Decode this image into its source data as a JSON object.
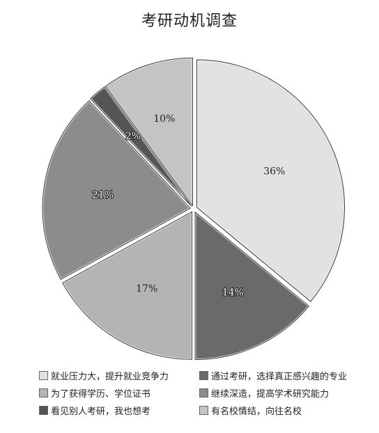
{
  "chart_data": {
    "type": "pie",
    "title": "考研动机调查",
    "slices": [
      {
        "label": "就业压力大，提升就业竞争力",
        "value": 36,
        "display": "36%",
        "color": "#e2e2e2"
      },
      {
        "label": "通过考研，选择真正感兴趣的专业",
        "value": 14,
        "display": "14%",
        "color": "#6a6a6a"
      },
      {
        "label": "为了获得学历、学位证书",
        "value": 17,
        "display": "17%",
        "color": "#b4b4b4"
      },
      {
        "label": "继续深造，提高学术研究能力",
        "value": 21,
        "display": "21%",
        "color": "#8c8c8c"
      },
      {
        "label": "看见别人考研，我也想考",
        "value": 2,
        "display": "2%",
        "color": "#555555"
      },
      {
        "label": "有名校情结，向往名校",
        "value": 10,
        "display": "10%",
        "color": "#c4c4c4"
      }
    ],
    "legend_position": "bottom"
  }
}
